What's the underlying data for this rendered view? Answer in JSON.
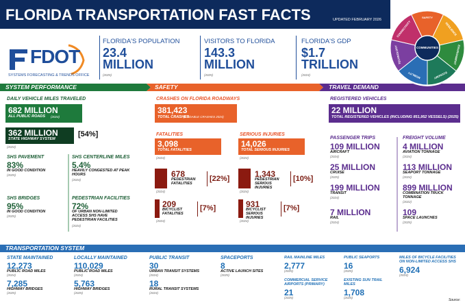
{
  "header": {
    "title": "FLORIDA TRANSPORTATION FAST FACTS",
    "updated": "UPDATED FEBRUARY 2026",
    "logo": "FDOT",
    "office": "SYSTEMS FORECASTING & TRENDS OFFICE"
  },
  "facts": [
    {
      "label": "FLORIDA'S POPULATION",
      "value": "23.4 MILLION",
      "year": "(2025)"
    },
    {
      "label": "VISITORS TO FLORIDA",
      "value": "143.3 MILLION",
      "year": "(2025)"
    },
    {
      "label": "FLORIDA'S GDP",
      "value": "$1.7 TRILLION",
      "year": "(2024)"
    }
  ],
  "wheel": {
    "center": "COMMUNITIES",
    "segments": [
      "SAFETY",
      "RESILIENCE",
      "ENVIRONMENT",
      "ECONOMY",
      "MOBILITY",
      "TECHNOLOGY",
      "CONNECTIVITY"
    ]
  },
  "sections": {
    "performance": "SYSTEM PERFORMANCE",
    "safety": "SAFETY",
    "demand": "TRAVEL DEMAND",
    "system": "TRANSPORTATION SYSTEM"
  },
  "performance": {
    "vmt_label": "DAILY VEHICLE MILES TRAVELED",
    "all": {
      "value": "682 MILLION",
      "text": "ALL PUBLIC ROADS",
      "year": "(2024)"
    },
    "shs": {
      "value": "362 MILLION",
      "text": "STATE HIGHWAY SYSTEM",
      "share": "[54%]",
      "year": "(2024)"
    },
    "items": [
      {
        "label": "SHS PAVEMENT",
        "value": "83%",
        "text": "IN GOOD CONDITION",
        "year": "(2025)"
      },
      {
        "label": "SHS CENTERLINE MILES",
        "value": "5.4%",
        "text": "HEAVILY CONGESTED AT PEAK HOURS",
        "year": "(2024)"
      },
      {
        "label": "SHS BRIDGES",
        "value": "95%",
        "text": "IN GOOD CONDITION",
        "year": "(2025)"
      },
      {
        "label": "PEDESTRIAN FACILITIES",
        "value": "72%",
        "text": "OF URBAN NON-LIMITED ACCESS SHS HAVE PEDESTRIAN FACILITIES",
        "year": "(2024)"
      }
    ]
  },
  "safety": {
    "crashes": {
      "label": "CRASHES ON FLORIDA ROADWAYS",
      "value": "381,423",
      "text": "TOTAL CRASHES",
      "note": "(CODABLE CRASHES 2024)"
    },
    "fatalities": {
      "label": "FATALITIES",
      "value": "3,098",
      "text": "TOTAL FATALITIES",
      "year": "(2024)",
      "pedestrian": {
        "value": "678",
        "text": "PEDESTRIAN FATALITIES",
        "year": "(2024)",
        "share": "[22%]"
      },
      "bicyclist": {
        "value": "209",
        "text": "BICYCLIST FATALITIES",
        "year": "(2024)",
        "share": "[7%]"
      }
    },
    "injuries": {
      "label": "SERIOUS INJURIES",
      "value": "14,026",
      "text": "TOTAL SERIOUS INJURIES",
      "year": "(2024)",
      "pedestrian": {
        "value": "1,343",
        "text": "PEDESTRIAN SERIOUS INJURIES",
        "year": "(2024)",
        "share": "[10%]"
      },
      "bicyclist": {
        "value": "931",
        "text": "BICYCLIST SERIOUS INJURIES",
        "year": "(2024)",
        "share": "[7%]"
      }
    }
  },
  "demand": {
    "registered": {
      "label": "REGISTERED VEHICLES",
      "value": "22 MILLION",
      "text": "TOTAL REGISTERED VEHICLES (INCLUDING 851,952 VESSELS) (2025)"
    },
    "passenger": {
      "label": "PASSENGER TRIPS",
      "items": [
        {
          "value": "109 MILLION",
          "text": "AIRCRAFT",
          "year": "(2024)"
        },
        {
          "value": "25 MILLION",
          "text": "CRUISE",
          "year": "(2025)"
        },
        {
          "value": "199 MILLION",
          "text": "TRANSIT",
          "year": "(2024)"
        },
        {
          "value": "7 MILLION",
          "text": "RAIL",
          "year": "(2024)"
        }
      ]
    },
    "freight": {
      "label": "FREIGHT VOLUME",
      "items": [
        {
          "value": "4 MILLION",
          "text": "AVIATION TONNAGE",
          "year": "(2024)"
        },
        {
          "value": "113 MILLION",
          "text": "SEAPORT TONNAGE",
          "year": "(2024)"
        },
        {
          "value": "899 MILLION",
          "text": "COMBINATION TRUCK TONNAGE",
          "year": "(2022)"
        },
        {
          "value": "109",
          "text": "SPACE LAUNCHES",
          "year": "(2025)"
        }
      ]
    }
  },
  "system": {
    "state": {
      "label": "STATE MAINTAINED",
      "roads": {
        "value": "12,273",
        "text": "PUBLIC ROAD MILES",
        "year": "(2024)"
      },
      "bridges": {
        "value": "7,285",
        "text": "HIGHWAY BRIDGES",
        "year": "(2025)"
      }
    },
    "local": {
      "label": "LOCALLY MAINTAINED",
      "roads": {
        "value": "110,029",
        "text": "PUBLIC ROAD MILES",
        "year": "(2024)"
      },
      "bridges": {
        "value": "5,763",
        "text": "HIGHWAY BRIDGES",
        "year": "(2025)"
      }
    },
    "transit": {
      "label": "PUBLIC TRANSIT",
      "roads": {
        "value": "30",
        "text": "URBAN TRANSIT SYSTEMS",
        "year": "(2024)"
      },
      "bridges": {
        "value": "18",
        "text": "RURAL TRANSIT SYSTEMS",
        "year": "(2024)"
      }
    },
    "spaceports": {
      "label": "SPACEPORTS",
      "sites": {
        "value": "8",
        "text": "ACTIVE LAUNCH SITES",
        "year": "(2025)"
      }
    },
    "rail": {
      "label": "RAIL MAINLINE MILES",
      "value": "2,777",
      "year": "(2025)"
    },
    "airports": {
      "label": "COMMERCIAL SERVICE AIRPORTS (PRIMARY)",
      "value": "21",
      "year": "(2025)"
    },
    "seaports": {
      "label": "PUBLIC SEAPORTS",
      "value": "16",
      "year": "(2025)"
    },
    "suntrail": {
      "label": "EXISTING SUN TRAIL MILES",
      "value": "1,708",
      "year": "(2025)"
    },
    "bicycle": {
      "label": "MILES OF BICYCLE FACILITIES ON NON-LIMITED ACCESS SHS",
      "value": "6,924",
      "year": "(2024)"
    },
    "source": "Source:"
  }
}
